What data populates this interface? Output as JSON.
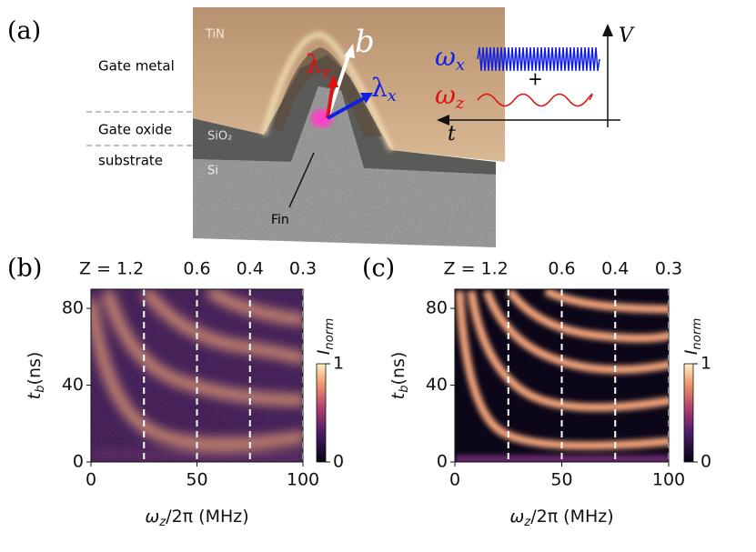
{
  "panel_a": {
    "label": "(a)",
    "layers": {
      "metal": "TiN",
      "oxide": "SiO₂",
      "substrate": "Si"
    },
    "left_labels": [
      "Gate metal",
      "Gate oxide",
      "substrate"
    ],
    "fin": "Fin",
    "vectors": {
      "b": "b",
      "lambda_z": {
        "base": "λ",
        "sub": "z"
      },
      "lambda_x": {
        "base": "λ",
        "sub": "x"
      }
    },
    "inset": {
      "omega_x": {
        "base": "ω",
        "sub": "x"
      },
      "omega_z": {
        "base": "ω",
        "sub": "z"
      },
      "plus": "+",
      "v_axis": "V",
      "t_axis": "t"
    }
  },
  "panel_b": {
    "label": "(b)",
    "xlim": [
      0,
      100
    ],
    "ylim": [
      0,
      90
    ],
    "xticks": [
      0,
      50,
      100
    ],
    "yticks": [
      0,
      40,
      80
    ],
    "top_ticks": [
      {
        "value": 25,
        "label": "Z = 1.2"
      },
      {
        "value": 50,
        "label": "0.6"
      },
      {
        "value": 75,
        "label": "0.4"
      },
      {
        "value": 100,
        "label": "0.3"
      }
    ],
    "xlabel": {
      "base": "ω",
      "sub": "z",
      "rest": "/2π (MHz)"
    },
    "ylabel": {
      "base": "t",
      "sub": "b",
      "rest": "(ns)"
    },
    "colorbar": {
      "label": {
        "base": "I",
        "sub": "norm"
      },
      "lim": [
        0,
        1
      ],
      "ticks": [
        0,
        1
      ]
    }
  },
  "panel_c": {
    "label": "(c)",
    "xlim": [
      0,
      100
    ],
    "ylim": [
      0,
      90
    ],
    "xticks": [
      0,
      50,
      100
    ],
    "yticks": [
      0,
      40,
      80
    ],
    "top_ticks": [
      {
        "value": 25,
        "label": "Z = 1.2"
      },
      {
        "value": 50,
        "label": "0.6"
      },
      {
        "value": 75,
        "label": "0.4"
      },
      {
        "value": 100,
        "label": "0.3"
      }
    ],
    "xlabel": {
      "base": "ω",
      "sub": "z",
      "rest": "/2π (MHz)"
    },
    "ylabel": {
      "base": "t",
      "sub": "b",
      "rest": "(ns)"
    },
    "colorbar": {
      "label": {
        "base": "I",
        "sub": "norm"
      },
      "lim": [
        0,
        1
      ],
      "ticks": [
        0,
        1
      ]
    }
  }
}
